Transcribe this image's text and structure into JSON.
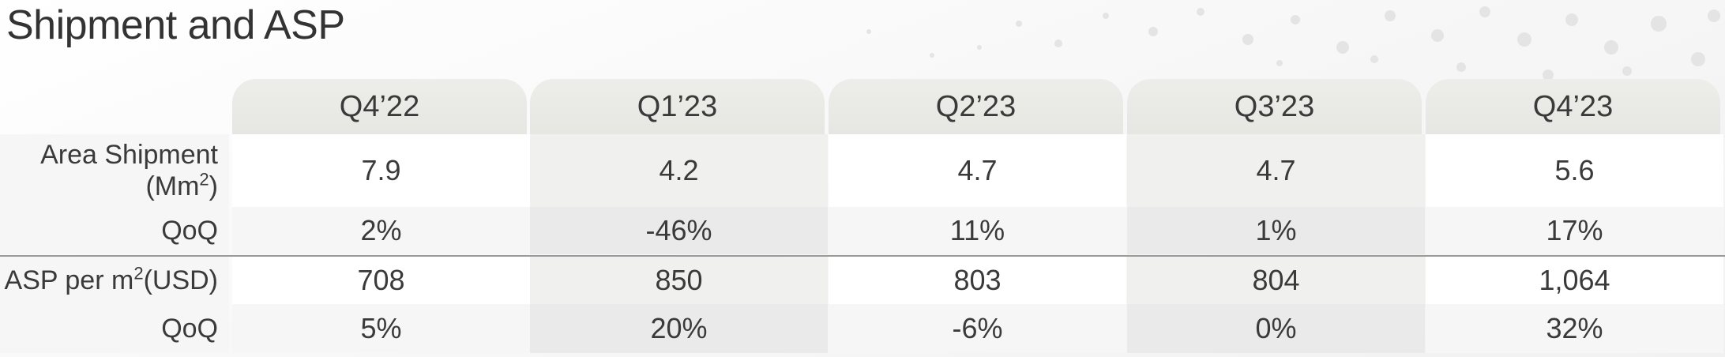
{
  "title": "Shipment and ASP",
  "columns": [
    "Q4’22",
    "Q1’23",
    "Q2’23",
    "Q3’23",
    "Q4’23"
  ],
  "rows": [
    {
      "label_line1": "Area Shipment",
      "label_line2_pre": "(Mm",
      "label_sup": "2",
      "label_line2_post": ")",
      "values": [
        "7.9",
        "4.2",
        "4.7",
        "4.7",
        "5.6"
      ]
    },
    {
      "label": "QoQ",
      "values": [
        "2%",
        "-46%",
        "11%",
        "1%",
        "17%"
      ]
    },
    {
      "label_pre": "ASP per m",
      "label_sup": "2",
      "label_post": "(USD)",
      "values": [
        "708",
        "850",
        "803",
        "804",
        "1,064"
      ]
    },
    {
      "label": "QoQ",
      "values": [
        "5%",
        "20%",
        "-6%",
        "0%",
        "32%"
      ]
    }
  ]
}
